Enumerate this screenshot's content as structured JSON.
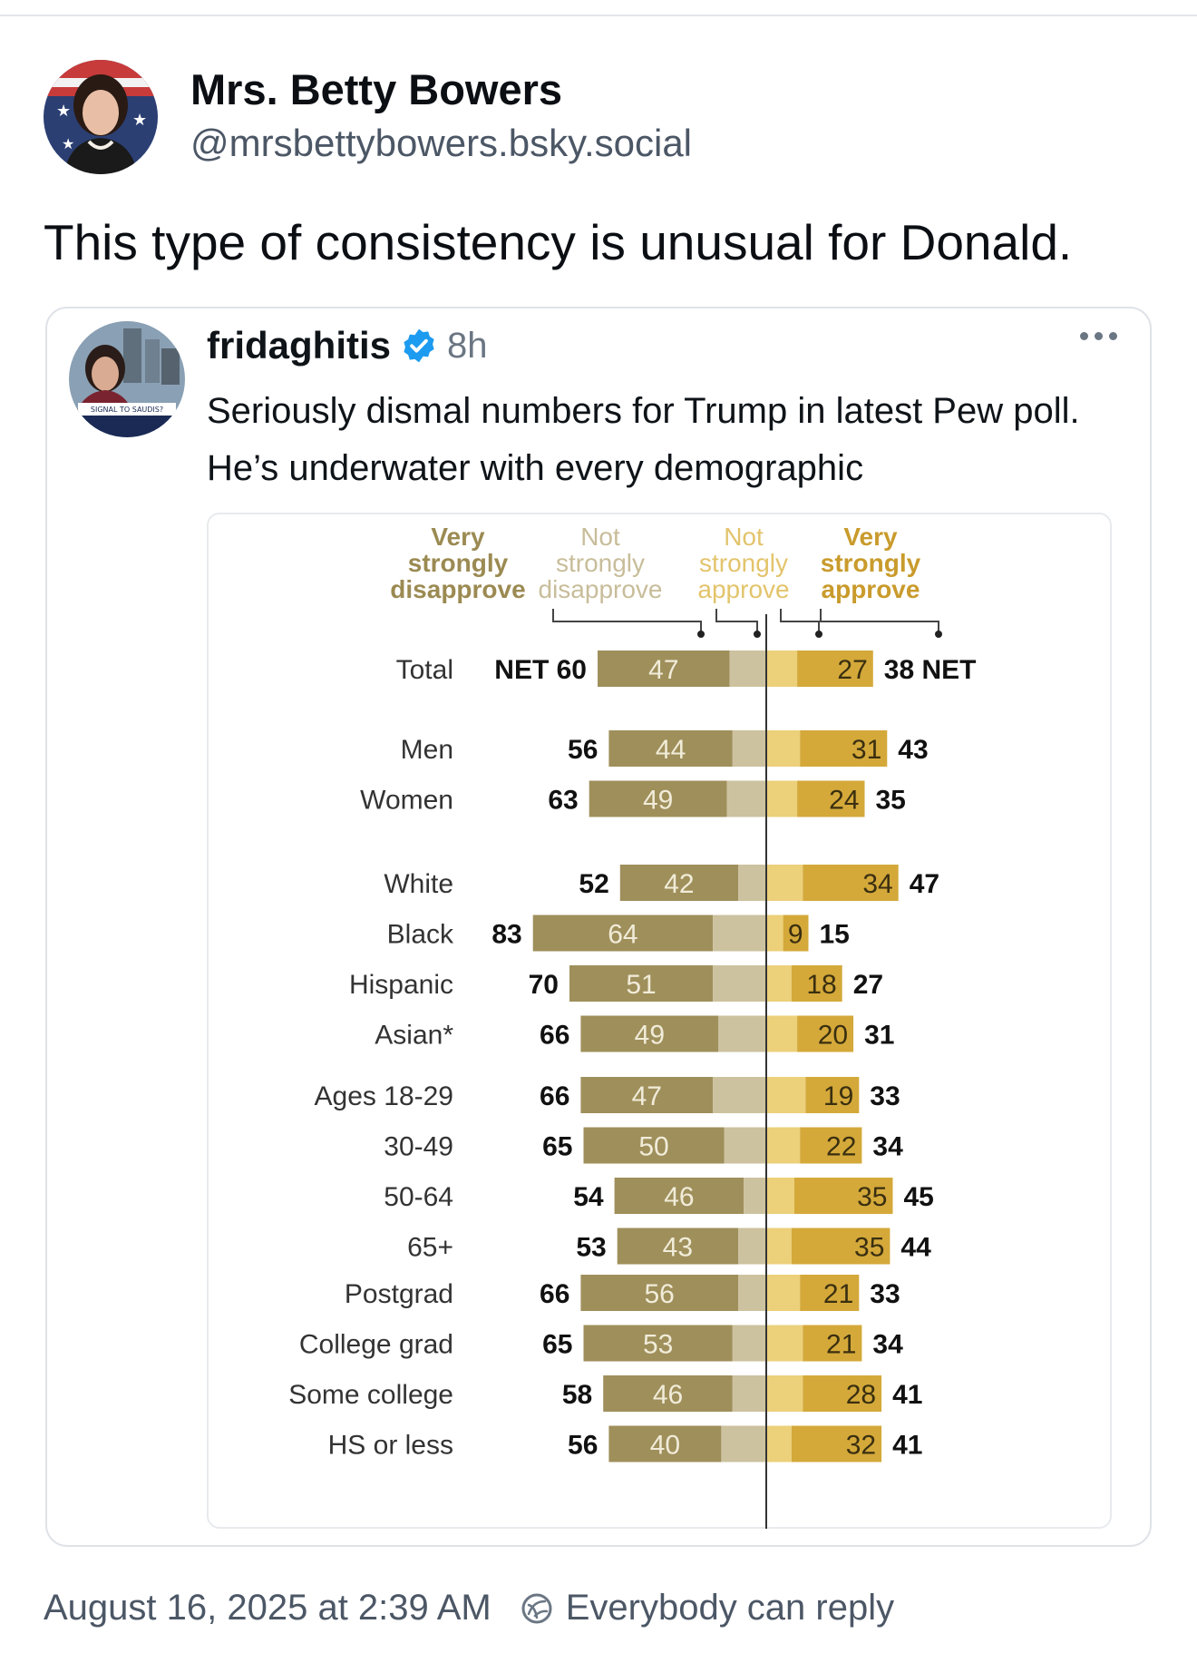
{
  "post": {
    "author_name": "Mrs. Betty Bowers",
    "author_handle": "@mrsbettybowers.bsky.social",
    "text": "This type of consistency is unusual for Donald.",
    "timestamp": "August 16, 2025 at 2:39 AM",
    "reply_setting": "Everybody can reply"
  },
  "quote": {
    "author_name": "fridaghitis",
    "time": "8h",
    "text": "Seriously dismal numbers for Trump in latest Pew poll. He’s underwater with every demographic",
    "avatar_caption": "SIGNAL TO SAUDIS?"
  },
  "colors": {
    "very_disapprove": "#9f8f5b",
    "not_strongly_disapprove": "#ccc29f",
    "not_strongly_approve": "#ecd07a",
    "very_approve": "#d4a93a",
    "verified_blue": "#1d9bf0"
  },
  "chart_data": {
    "type": "bar",
    "orientation": "horizontal-diverging",
    "legend": [
      "Very strongly disapprove",
      "Not strongly disapprove",
      "Not strongly approve",
      "Very strongly approve"
    ],
    "legend_lines": [
      [
        "Very",
        "strongly",
        "disapprove"
      ],
      [
        "Not",
        "strongly",
        "disapprove"
      ],
      [
        "Not",
        "strongly",
        "approve"
      ],
      [
        "Very",
        "strongly",
        "approve"
      ]
    ],
    "net_label": "NET",
    "groups": [
      [
        {
          "label": "Total",
          "net_dis": 60,
          "very_dis": 47,
          "very_app": 27,
          "net_app": 38,
          "total": true
        }
      ],
      [
        {
          "label": "Men",
          "net_dis": 56,
          "very_dis": 44,
          "very_app": 31,
          "net_app": 43
        },
        {
          "label": "Women",
          "net_dis": 63,
          "very_dis": 49,
          "very_app": 24,
          "net_app": 35
        }
      ],
      [
        {
          "label": "White",
          "net_dis": 52,
          "very_dis": 42,
          "very_app": 34,
          "net_app": 47
        },
        {
          "label": "Black",
          "net_dis": 83,
          "very_dis": 64,
          "very_app": 9,
          "net_app": 15
        },
        {
          "label": "Hispanic",
          "net_dis": 70,
          "very_dis": 51,
          "very_app": 18,
          "net_app": 27
        },
        {
          "label": "Asian*",
          "net_dis": 66,
          "very_dis": 49,
          "very_app": 20,
          "net_app": 31
        }
      ],
      [
        {
          "label": "Ages 18-29",
          "net_dis": 66,
          "very_dis": 47,
          "very_app": 19,
          "net_app": 33
        },
        {
          "label": "30-49",
          "net_dis": 65,
          "very_dis": 50,
          "very_app": 22,
          "net_app": 34
        },
        {
          "label": "50-64",
          "net_dis": 54,
          "very_dis": 46,
          "very_app": 35,
          "net_app": 45
        },
        {
          "label": "65+",
          "net_dis": 53,
          "very_dis": 43,
          "very_app": 35,
          "net_app": 44
        }
      ],
      [
        {
          "label": "Postgrad",
          "net_dis": 66,
          "very_dis": 56,
          "very_app": 21,
          "net_app": 33
        },
        {
          "label": "College grad",
          "net_dis": 65,
          "very_dis": 53,
          "very_app": 21,
          "net_app": 34
        },
        {
          "label": "Some college",
          "net_dis": 58,
          "very_dis": 46,
          "very_app": 28,
          "net_app": 41
        },
        {
          "label": "HS or less",
          "net_dis": 56,
          "very_dis": 40,
          "very_app": 32,
          "net_app": 41
        }
      ]
    ]
  }
}
